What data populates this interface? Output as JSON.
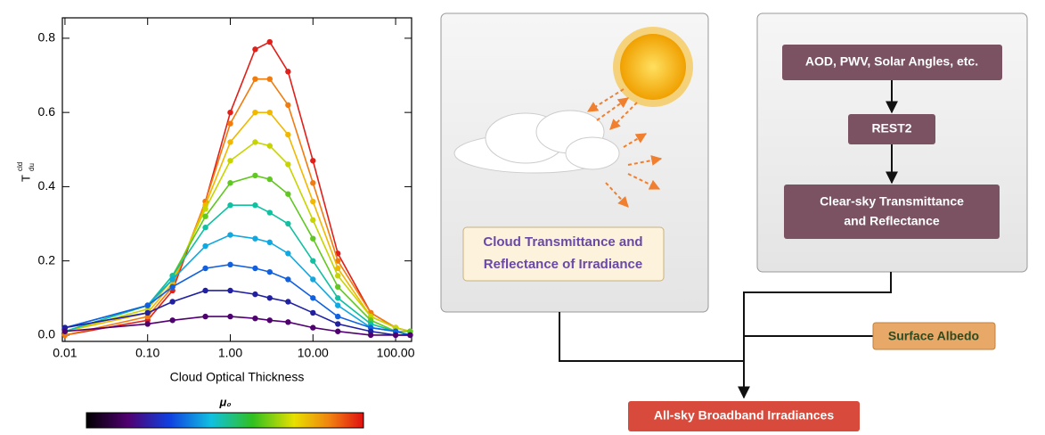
{
  "chart_data": {
    "type": "line",
    "ylabel": "T",
    "ylabel_sup": "cld",
    "ylabel_sub": "du",
    "xlabel": "Cloud Optical Thickness",
    "colorbar_label": "μ₀",
    "log_x": true,
    "x": [
      0.01,
      0.1,
      0.2,
      0.5,
      1,
      2,
      3,
      5,
      10,
      20,
      50,
      100,
      150
    ],
    "xlim": [
      0.0093,
      156
    ],
    "xticks": [
      0.01,
      {
        "value": 0.1,
        "label": "0.10"
      },
      {
        "value": 1,
        "label": "1.00"
      },
      {
        "value": 10,
        "label": "10.00"
      },
      {
        "value": 100,
        "label": "100.00"
      }
    ],
    "ylim": [
      -0.017,
      0.855
    ],
    "yticks": [
      {
        "value": 0,
        "label": "0.0"
      },
      0.2,
      0.4,
      0.6,
      0.8
    ],
    "series": [
      {
        "color": "#e0201a",
        "values": [
          0.0,
          0.04,
          0.12,
          0.36,
          0.6,
          0.77,
          0.79,
          0.71,
          0.47,
          0.22,
          0.06,
          0.02,
          0.01
        ]
      },
      {
        "color": "#f07c10",
        "values": [
          0.0,
          0.05,
          0.13,
          0.36,
          0.57,
          0.69,
          0.69,
          0.62,
          0.41,
          0.2,
          0.06,
          0.02,
          0.01
        ]
      },
      {
        "color": "#f0b800",
        "values": [
          0.01,
          0.06,
          0.14,
          0.35,
          0.52,
          0.6,
          0.6,
          0.54,
          0.36,
          0.18,
          0.05,
          0.02,
          0.01
        ]
      },
      {
        "color": "#c8d400",
        "values": [
          0.01,
          0.07,
          0.15,
          0.34,
          0.47,
          0.52,
          0.51,
          0.46,
          0.31,
          0.16,
          0.05,
          0.02,
          0.01
        ]
      },
      {
        "color": "#60c820",
        "values": [
          0.01,
          0.08,
          0.16,
          0.32,
          0.41,
          0.43,
          0.42,
          0.38,
          0.26,
          0.13,
          0.04,
          0.01,
          0.01
        ]
      },
      {
        "color": "#10c0a0",
        "values": [
          0.01,
          0.08,
          0.16,
          0.29,
          0.35,
          0.35,
          0.33,
          0.3,
          0.2,
          0.1,
          0.03,
          0.01,
          0.0
        ]
      },
      {
        "color": "#10a8e0",
        "values": [
          0.02,
          0.08,
          0.15,
          0.24,
          0.27,
          0.26,
          0.25,
          0.22,
          0.15,
          0.08,
          0.02,
          0.01,
          0.0
        ]
      },
      {
        "color": "#1060e0",
        "values": [
          0.02,
          0.08,
          0.13,
          0.18,
          0.19,
          0.18,
          0.17,
          0.15,
          0.1,
          0.05,
          0.02,
          0.01,
          0.0
        ]
      },
      {
        "color": "#2020a0",
        "values": [
          0.02,
          0.06,
          0.09,
          0.12,
          0.12,
          0.11,
          0.1,
          0.09,
          0.06,
          0.03,
          0.01,
          0.0,
          0.0
        ]
      },
      {
        "color": "#500070",
        "values": [
          0.01,
          0.03,
          0.04,
          0.05,
          0.05,
          0.045,
          0.04,
          0.035,
          0.02,
          0.01,
          0.0,
          0.0,
          0.0
        ]
      }
    ]
  },
  "diagram": {
    "cloud_box": {
      "lines": [
        "Cloud Transmittance and",
        "Reflectance of Irradiance"
      ]
    },
    "inputs": {
      "label": "AOD, PWV, Solar Angles, etc."
    },
    "model": {
      "label": "REST2"
    },
    "clear_sky": {
      "lines": [
        "Clear-sky Transmittance",
        "and Reflectance"
      ]
    },
    "albedo": {
      "label": "Surface Albedo"
    },
    "output": {
      "label": "All-sky Broadband Irradiances"
    }
  }
}
